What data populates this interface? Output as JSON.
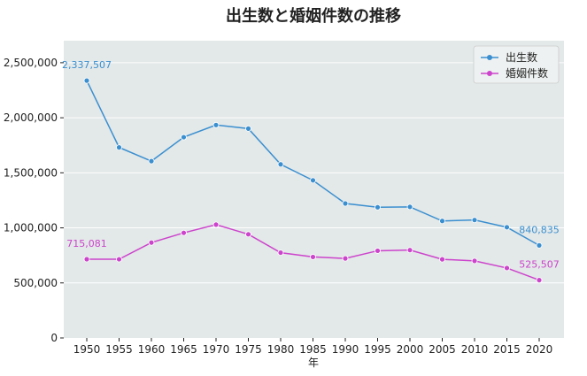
{
  "chart_data": {
    "type": "line",
    "title": "出生数と婚姻件数の推移",
    "xlabel": "年",
    "ylabel": "",
    "x": [
      1950,
      1955,
      1960,
      1965,
      1970,
      1975,
      1980,
      1985,
      1990,
      1995,
      2000,
      2005,
      2010,
      2015,
      2020
    ],
    "xticklabels": [
      "1950",
      "1955",
      "1960",
      "1965",
      "1970",
      "1975",
      "1980",
      "1985",
      "1990",
      "1995",
      "2000",
      "2005",
      "2010",
      "2015",
      "2020"
    ],
    "ylim": [
      0,
      2700000
    ],
    "yticks": [
      0,
      500000,
      1000000,
      1500000,
      2000000,
      2500000
    ],
    "yticklabels": [
      "0",
      "500,000",
      "1,000,000",
      "1,500,000",
      "2,000,000",
      "2,500,000"
    ],
    "grid": "horizontal",
    "legend_position": "top-right",
    "series": [
      {
        "name": "出生数",
        "color": "#3a8fd0",
        "values": [
          2337507,
          1730692,
          1606041,
          1823697,
          1934239,
          1901440,
          1576889,
          1431577,
          1221585,
          1187064,
          1190547,
          1062530,
          1071305,
          1005721,
          840835
        ],
        "labels": [
          {
            "index": 0,
            "text": "2,337,507",
            "position": "above"
          },
          {
            "index": 14,
            "text": "840,835",
            "position": "above"
          }
        ]
      },
      {
        "name": "婚姻件数",
        "color": "#cc44cc",
        "values": [
          715081,
          714861,
          866115,
          954852,
          1029405,
          941628,
          774702,
          735850,
          722138,
          791888,
          798138,
          714265,
          700222,
          635225,
          525507
        ],
        "labels": [
          {
            "index": 0,
            "text": "715,081",
            "position": "above"
          },
          {
            "index": 14,
            "text": "525,507",
            "position": "above"
          }
        ]
      }
    ]
  },
  "colors": {
    "plot_background": "#e3e8e8",
    "grid": "#ffffff",
    "text": "#222222"
  }
}
